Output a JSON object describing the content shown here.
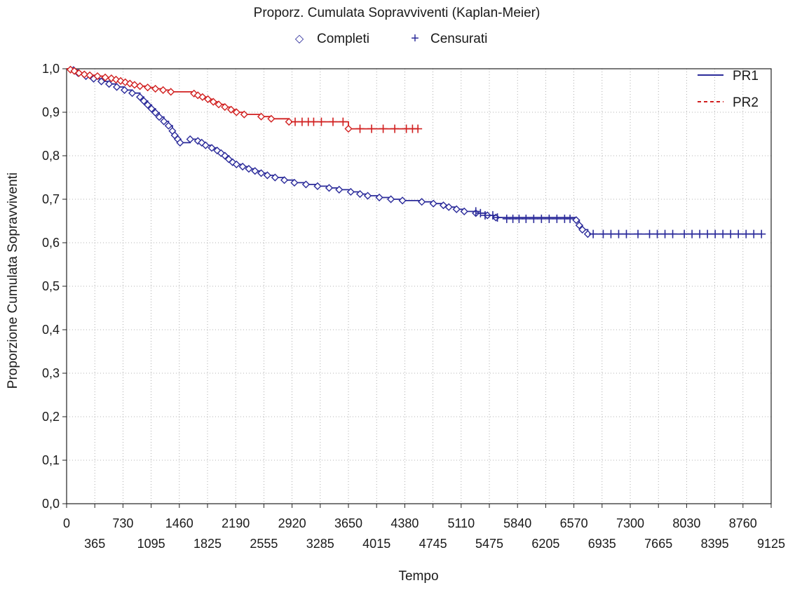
{
  "chart_data": {
    "type": "line",
    "title": "Proporz. Cumulata Sopravviventi (Kaplan-Meier)",
    "xlabel": "Tempo",
    "ylabel": "Proporzione Cumulata Sopravviventi",
    "xlim": [
      0,
      9125
    ],
    "ylim": [
      0,
      1
    ],
    "grid": true,
    "legend_placement": "top-right",
    "x_ticks": [
      {
        "value": 0,
        "label": "0"
      },
      {
        "value": 365,
        "label": "365"
      },
      {
        "value": 730,
        "label": "730"
      },
      {
        "value": 1095,
        "label": "1095"
      },
      {
        "value": 1460,
        "label": "1460"
      },
      {
        "value": 1825,
        "label": "1825"
      },
      {
        "value": 2190,
        "label": "2190"
      },
      {
        "value": 2555,
        "label": "2555"
      },
      {
        "value": 2920,
        "label": "2920"
      },
      {
        "value": 3285,
        "label": "3285"
      },
      {
        "value": 3650,
        "label": "3650"
      },
      {
        "value": 4015,
        "label": "4015"
      },
      {
        "value": 4380,
        "label": "4380"
      },
      {
        "value": 4745,
        "label": "4745"
      },
      {
        "value": 5110,
        "label": "5110"
      },
      {
        "value": 5475,
        "label": "5475"
      },
      {
        "value": 5840,
        "label": "5840"
      },
      {
        "value": 6205,
        "label": "6205"
      },
      {
        "value": 6570,
        "label": "6570"
      },
      {
        "value": 6935,
        "label": "6935"
      },
      {
        "value": 7300,
        "label": "7300"
      },
      {
        "value": 7665,
        "label": "7665"
      },
      {
        "value": 8030,
        "label": "8030"
      },
      {
        "value": 8395,
        "label": "8395"
      },
      {
        "value": 8760,
        "label": "8760"
      },
      {
        "value": 9125,
        "label": "9125"
      }
    ],
    "y_ticks": [
      {
        "value": 0,
        "label": "0,0"
      },
      {
        "value": 0.1,
        "label": "0,1"
      },
      {
        "value": 0.2,
        "label": "0,2"
      },
      {
        "value": 0.3,
        "label": "0,3"
      },
      {
        "value": 0.4,
        "label": "0,4"
      },
      {
        "value": 0.5,
        "label": "0,5"
      },
      {
        "value": 0.6,
        "label": "0,6"
      },
      {
        "value": 0.7,
        "label": "0,7"
      },
      {
        "value": 0.8,
        "label": "0,8"
      },
      {
        "value": 0.9,
        "label": "0,9"
      },
      {
        "value": 1.0,
        "label": "1,0"
      }
    ],
    "marker_legend": {
      "complete_symbol": "◇",
      "complete_label": "Completi",
      "censored_symbol": "+",
      "censored_label": "Censurati"
    },
    "series": [
      {
        "name": "PR1",
        "color": "#2b2b9a",
        "style": "solid",
        "events": [
          [
            0,
            1.0
          ],
          [
            90,
            0.997
          ],
          [
            150,
            0.99
          ],
          [
            250,
            0.983
          ],
          [
            350,
            0.977
          ],
          [
            450,
            0.971
          ],
          [
            550,
            0.965
          ],
          [
            650,
            0.958
          ],
          [
            750,
            0.951
          ],
          [
            850,
            0.944
          ],
          [
            950,
            0.935
          ],
          [
            1000,
            0.926
          ],
          [
            1050,
            0.917
          ],
          [
            1100,
            0.908
          ],
          [
            1150,
            0.899
          ],
          [
            1200,
            0.889
          ],
          [
            1260,
            0.879
          ],
          [
            1320,
            0.869
          ],
          [
            1370,
            0.857
          ],
          [
            1400,
            0.847
          ],
          [
            1440,
            0.838
          ],
          [
            1470,
            0.83
          ],
          [
            1600,
            0.838
          ],
          [
            1700,
            0.834
          ],
          [
            1750,
            0.83
          ],
          [
            1800,
            0.824
          ],
          [
            1880,
            0.818
          ],
          [
            1950,
            0.812
          ],
          [
            2000,
            0.806
          ],
          [
            2050,
            0.8
          ],
          [
            2100,
            0.792
          ],
          [
            2150,
            0.785
          ],
          [
            2200,
            0.78
          ],
          [
            2280,
            0.775
          ],
          [
            2360,
            0.77
          ],
          [
            2440,
            0.765
          ],
          [
            2520,
            0.76
          ],
          [
            2600,
            0.755
          ],
          [
            2700,
            0.75
          ],
          [
            2820,
            0.744
          ],
          [
            2950,
            0.738
          ],
          [
            3100,
            0.734
          ],
          [
            3250,
            0.73
          ],
          [
            3400,
            0.726
          ],
          [
            3530,
            0.722
          ],
          [
            3680,
            0.717
          ],
          [
            3800,
            0.712
          ],
          [
            3900,
            0.708
          ],
          [
            4050,
            0.704
          ],
          [
            4200,
            0.7
          ],
          [
            4350,
            0.697
          ],
          [
            4600,
            0.694
          ],
          [
            4750,
            0.69
          ],
          [
            4880,
            0.686
          ],
          [
            4950,
            0.682
          ],
          [
            5050,
            0.677
          ],
          [
            5150,
            0.672
          ],
          [
            5300,
            0.668
          ],
          [
            5450,
            0.663
          ],
          [
            5560,
            0.658
          ],
          [
            6600,
            0.652
          ],
          [
            6640,
            0.64
          ],
          [
            6680,
            0.63
          ],
          [
            6750,
            0.62
          ]
        ],
        "censored": [
          [
            5300,
            0.672
          ],
          [
            5360,
            0.668
          ],
          [
            5420,
            0.663
          ],
          [
            5520,
            0.663
          ],
          [
            5580,
            0.658
          ],
          [
            5700,
            0.655
          ],
          [
            5780,
            0.655
          ],
          [
            5860,
            0.655
          ],
          [
            5950,
            0.655
          ],
          [
            6050,
            0.655
          ],
          [
            6150,
            0.655
          ],
          [
            6250,
            0.655
          ],
          [
            6350,
            0.655
          ],
          [
            6450,
            0.655
          ],
          [
            6520,
            0.655
          ],
          [
            6820,
            0.62
          ],
          [
            6950,
            0.62
          ],
          [
            7050,
            0.62
          ],
          [
            7150,
            0.62
          ],
          [
            7250,
            0.62
          ],
          [
            7400,
            0.62
          ],
          [
            7550,
            0.62
          ],
          [
            7650,
            0.62
          ],
          [
            7750,
            0.62
          ],
          [
            7850,
            0.62
          ],
          [
            8000,
            0.62
          ],
          [
            8100,
            0.62
          ],
          [
            8200,
            0.62
          ],
          [
            8300,
            0.62
          ],
          [
            8400,
            0.62
          ],
          [
            8500,
            0.62
          ],
          [
            8600,
            0.62
          ],
          [
            8700,
            0.62
          ],
          [
            8800,
            0.62
          ],
          [
            8900,
            0.62
          ],
          [
            9000,
            0.62
          ]
        ],
        "end_x": 9000
      },
      {
        "name": "PR2",
        "color": "#d12020",
        "style": "dashed",
        "events": [
          [
            0,
            1.0
          ],
          [
            50,
            0.998
          ],
          [
            100,
            0.995
          ],
          [
            160,
            0.99
          ],
          [
            230,
            0.987
          ],
          [
            300,
            0.985
          ],
          [
            400,
            0.983
          ],
          [
            500,
            0.98
          ],
          [
            580,
            0.978
          ],
          [
            640,
            0.975
          ],
          [
            700,
            0.972
          ],
          [
            760,
            0.969
          ],
          [
            820,
            0.966
          ],
          [
            880,
            0.963
          ],
          [
            950,
            0.96
          ],
          [
            1050,
            0.957
          ],
          [
            1150,
            0.954
          ],
          [
            1250,
            0.951
          ],
          [
            1350,
            0.947
          ],
          [
            1650,
            0.943
          ],
          [
            1700,
            0.939
          ],
          [
            1760,
            0.935
          ],
          [
            1830,
            0.93
          ],
          [
            1900,
            0.924
          ],
          [
            1970,
            0.918
          ],
          [
            2050,
            0.912
          ],
          [
            2130,
            0.906
          ],
          [
            2200,
            0.9
          ],
          [
            2300,
            0.895
          ],
          [
            2520,
            0.89
          ],
          [
            2650,
            0.885
          ],
          [
            2880,
            0.878
          ],
          [
            3650,
            0.862
          ]
        ],
        "censored": [
          [
            2960,
            0.878
          ],
          [
            3050,
            0.878
          ],
          [
            3130,
            0.878
          ],
          [
            3200,
            0.878
          ],
          [
            3300,
            0.878
          ],
          [
            3450,
            0.878
          ],
          [
            3580,
            0.878
          ],
          [
            3800,
            0.862
          ],
          [
            3950,
            0.862
          ],
          [
            4100,
            0.862
          ],
          [
            4250,
            0.862
          ],
          [
            4400,
            0.862
          ],
          [
            4480,
            0.862
          ],
          [
            4550,
            0.862
          ]
        ],
        "end_x": 4560
      }
    ]
  }
}
